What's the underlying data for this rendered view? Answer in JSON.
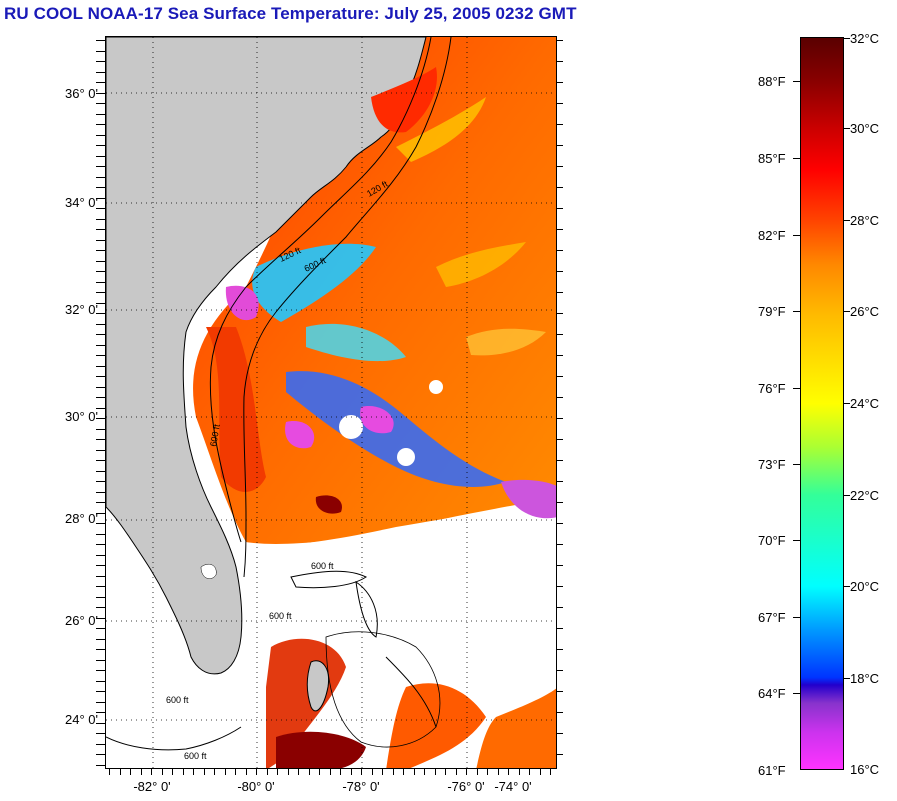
{
  "title": "RU COOL  NOAA-17  Sea Surface Temperature:  July 25, 2005 0232 GMT",
  "map": {
    "lat_labels": [
      "36° 0'",
      "34° 0'",
      "32° 0'",
      "30° 0'",
      "28° 0'",
      "26° 0'",
      "24° 0'"
    ],
    "lon_labels": [
      "-82° 0'",
      "-80° 0'",
      "-78° 0'",
      "-76° 0'",
      "-74° 0'"
    ],
    "contour_labels": [
      "120 ft",
      "600 ft",
      "120 ft",
      "600 ft",
      "600 ft",
      "600 ft",
      "600 ft",
      "600 ft"
    ],
    "colors": {
      "land": "#c8c8c8",
      "cloud": "#ffffff",
      "coast": "#000000"
    }
  },
  "colorbar": {
    "fahrenheit_labels": [
      "88°F",
      "85°F",
      "82°F",
      "79°F",
      "76°F",
      "73°F",
      "70°F",
      "67°F",
      "64°F",
      "61°F"
    ],
    "celsius_labels": [
      "32°C",
      "30°C",
      "28°C",
      "26°C",
      "24°C",
      "22°C",
      "20°C",
      "18°C",
      "16°C"
    ]
  }
}
